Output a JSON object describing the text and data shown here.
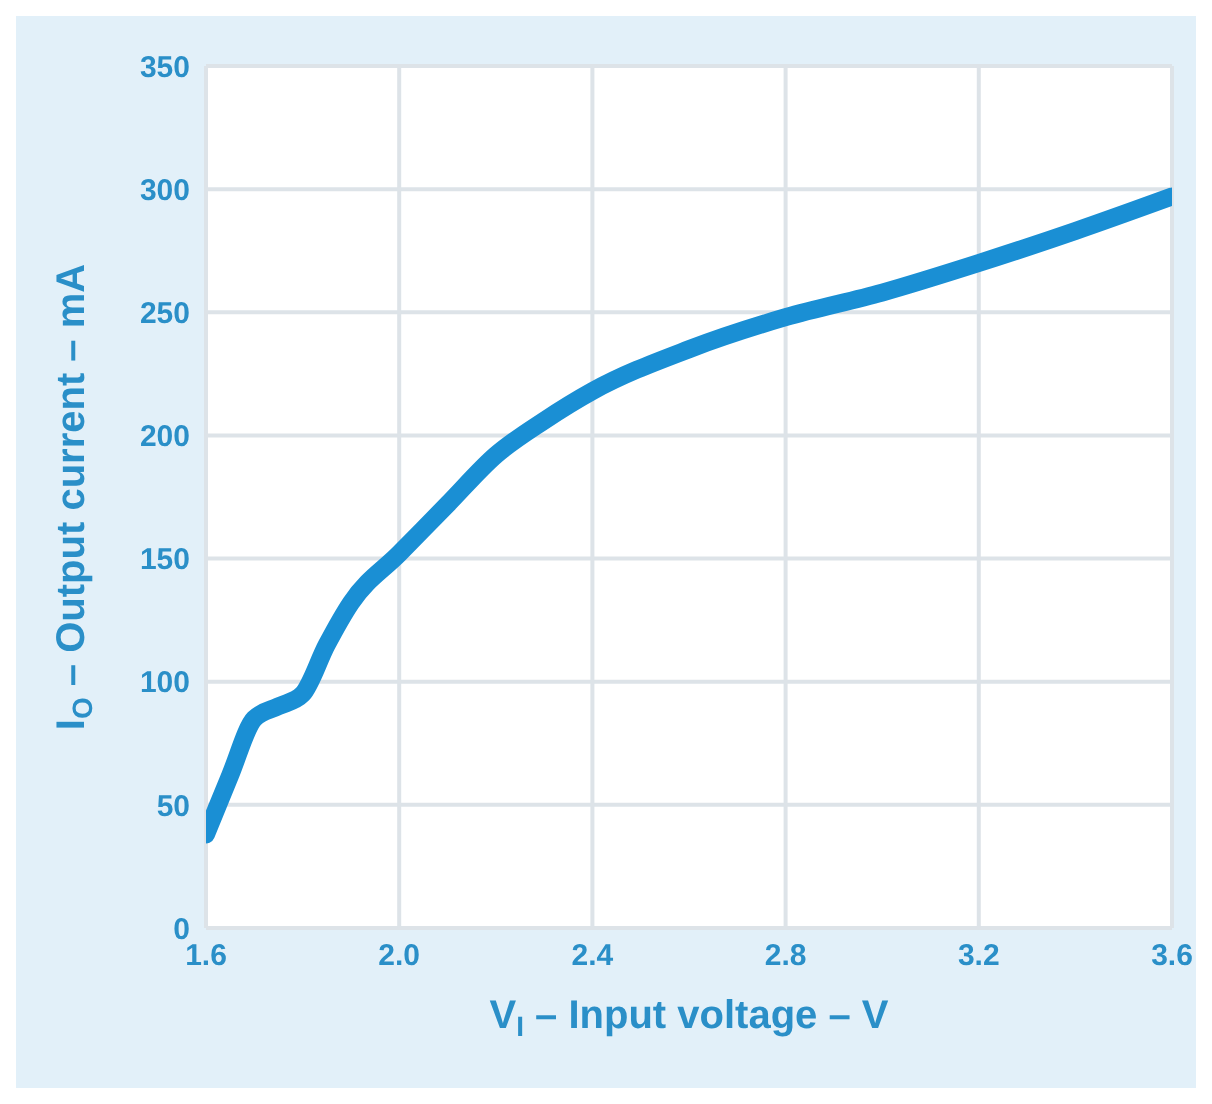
{
  "chart_data": {
    "type": "line",
    "xlabel": "V$_{I}$ – Input voltage – V",
    "ylabel": "I$_{O}$ – Output current – mA",
    "x": [
      1.6,
      1.65,
      1.7,
      1.75,
      1.8,
      1.85,
      1.9,
      2.0,
      2.1,
      2.2,
      2.3,
      2.4,
      2.6,
      2.8,
      3.0,
      3.2,
      3.4,
      3.6
    ],
    "series": [
      {
        "color": "#1a8fd4",
        "values": [
          38,
          62,
          85,
          90,
          95,
          115,
          132,
          152,
          172,
          192,
          206,
          218,
          235,
          248,
          258,
          270,
          283,
          297
        ]
      }
    ],
    "xlim": [
      1.6,
      3.6
    ],
    "xticks": [
      {
        "value": 1.6,
        "label": "1.6"
      },
      {
        "value": 2.0,
        "label": "2.0"
      },
      {
        "value": 2.4,
        "label": "2.4"
      },
      {
        "value": 2.8,
        "label": "2.8"
      },
      {
        "value": 3.2,
        "label": "3.2"
      },
      {
        "value": 3.6,
        "label": "3.6"
      }
    ],
    "ylim": [
      0,
      350
    ],
    "yticks": [
      0,
      50,
      100,
      150,
      200,
      250,
      300,
      350
    ],
    "grid": true,
    "marker": "none",
    "line_style": "solid"
  }
}
